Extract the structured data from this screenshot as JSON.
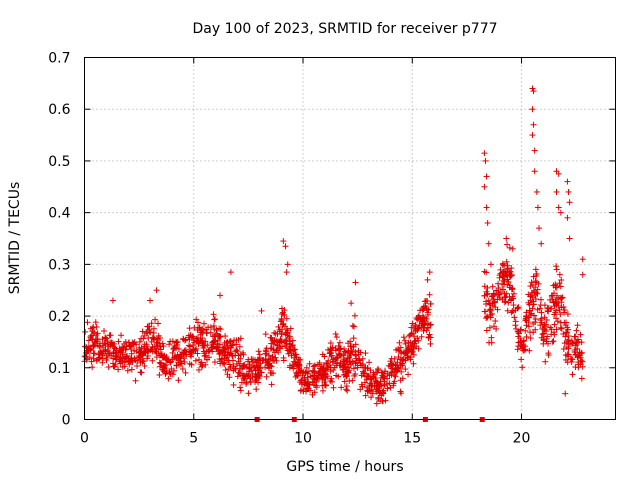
{
  "chart_data": {
    "type": "scatter",
    "title": "Day 100 of 2023, SRMTID for receiver p777",
    "xlabel": "GPS time / hours",
    "ylabel": "SRMTID / TECUs",
    "xlim": [
      0,
      24.3
    ],
    "ylim": [
      0,
      0.7
    ],
    "x_ticks": [
      0,
      5,
      10,
      15,
      20
    ],
    "x_tick_labels": [
      "0",
      "5",
      "10",
      "15",
      "20"
    ],
    "y_ticks": [
      0,
      0.1,
      0.2,
      0.3,
      0.4,
      0.5,
      0.6,
      0.7
    ],
    "y_tick_labels": [
      "0",
      "0.1",
      "0.2",
      "0.3",
      "0.4",
      "0.5",
      "0.6",
      "0.7"
    ],
    "grid": true,
    "marker_symbol": "+",
    "series_color": "#e00000",
    "bottom_markers_x": [
      7.9,
      9.6,
      15.6,
      18.2
    ],
    "profile": {
      "x": [
        0,
        0.5,
        1,
        1.5,
        2,
        2.5,
        3,
        3.3,
        3.6,
        4,
        4.5,
        5,
        5.3,
        5.7,
        6,
        6.5,
        7,
        7.5,
        8,
        8.5,
        9,
        9.3,
        9.6,
        10,
        10.5,
        11,
        11.5,
        12,
        12.3,
        12.6,
        13,
        13.5,
        14,
        14.5,
        15,
        15.3,
        15.6,
        15.9
      ],
      "y": [
        0.13,
        0.14,
        0.14,
        0.12,
        0.13,
        0.12,
        0.15,
        0.14,
        0.11,
        0.12,
        0.13,
        0.14,
        0.15,
        0.14,
        0.16,
        0.13,
        0.11,
        0.09,
        0.1,
        0.12,
        0.17,
        0.16,
        0.12,
        0.07,
        0.08,
        0.09,
        0.12,
        0.1,
        0.14,
        0.11,
        0.08,
        0.06,
        0.09,
        0.11,
        0.14,
        0.18,
        0.2,
        0.17
      ],
      "spread": [
        0.05,
        0.05,
        0.04,
        0.04,
        0.04,
        0.04,
        0.05,
        0.05,
        0.04,
        0.04,
        0.05,
        0.05,
        0.06,
        0.05,
        0.05,
        0.05,
        0.05,
        0.04,
        0.04,
        0.05,
        0.05,
        0.06,
        0.04,
        0.03,
        0.03,
        0.04,
        0.05,
        0.05,
        0.06,
        0.05,
        0.04,
        0.04,
        0.04,
        0.05,
        0.05,
        0.05,
        0.05,
        0.05
      ]
    },
    "profile2": {
      "x": [
        18.3,
        18.6,
        19,
        19.4,
        19.8,
        20.1,
        20.4,
        20.7,
        21,
        21.3,
        21.6,
        21.9,
        22.2,
        22.5,
        22.8
      ],
      "y": [
        0.24,
        0.2,
        0.26,
        0.28,
        0.18,
        0.14,
        0.22,
        0.24,
        0.16,
        0.18,
        0.24,
        0.2,
        0.12,
        0.14,
        0.12
      ],
      "spread": [
        0.07,
        0.06,
        0.06,
        0.06,
        0.06,
        0.05,
        0.06,
        0.07,
        0.06,
        0.06,
        0.07,
        0.06,
        0.05,
        0.05,
        0.04
      ]
    },
    "spikes": [
      {
        "x": 1.3,
        "y": 0.23
      },
      {
        "x": 3.0,
        "y": 0.23
      },
      {
        "x": 3.3,
        "y": 0.25
      },
      {
        "x": 6.2,
        "y": 0.24
      },
      {
        "x": 6.7,
        "y": 0.285
      },
      {
        "x": 8.1,
        "y": 0.21
      },
      {
        "x": 9.1,
        "y": 0.345
      },
      {
        "x": 9.2,
        "y": 0.335
      },
      {
        "x": 9.25,
        "y": 0.285
      },
      {
        "x": 9.3,
        "y": 0.3
      },
      {
        "x": 12.4,
        "y": 0.265
      },
      {
        "x": 12.2,
        "y": 0.225
      },
      {
        "x": 15.8,
        "y": 0.285
      },
      {
        "x": 15.7,
        "y": 0.27
      },
      {
        "x": 18.3,
        "y": 0.515
      },
      {
        "x": 18.35,
        "y": 0.5
      },
      {
        "x": 18.4,
        "y": 0.47
      },
      {
        "x": 18.3,
        "y": 0.45
      },
      {
        "x": 18.4,
        "y": 0.41
      },
      {
        "x": 18.45,
        "y": 0.38
      },
      {
        "x": 18.5,
        "y": 0.34
      },
      {
        "x": 18.6,
        "y": 0.3
      },
      {
        "x": 20.5,
        "y": 0.64
      },
      {
        "x": 20.55,
        "y": 0.635
      },
      {
        "x": 20.5,
        "y": 0.6
      },
      {
        "x": 20.55,
        "y": 0.57
      },
      {
        "x": 20.5,
        "y": 0.55
      },
      {
        "x": 20.6,
        "y": 0.52
      },
      {
        "x": 20.6,
        "y": 0.48
      },
      {
        "x": 20.7,
        "y": 0.44
      },
      {
        "x": 20.75,
        "y": 0.41
      },
      {
        "x": 20.8,
        "y": 0.37
      },
      {
        "x": 20.9,
        "y": 0.34
      },
      {
        "x": 21.6,
        "y": 0.48
      },
      {
        "x": 21.7,
        "y": 0.475
      },
      {
        "x": 21.6,
        "y": 0.44
      },
      {
        "x": 21.7,
        "y": 0.41
      },
      {
        "x": 21.8,
        "y": 0.4
      },
      {
        "x": 22.1,
        "y": 0.46
      },
      {
        "x": 22.15,
        "y": 0.44
      },
      {
        "x": 22.2,
        "y": 0.42
      },
      {
        "x": 22.1,
        "y": 0.39
      },
      {
        "x": 22.2,
        "y": 0.35
      },
      {
        "x": 22.8,
        "y": 0.31
      },
      {
        "x": 22.8,
        "y": 0.28
      },
      {
        "x": 19.3,
        "y": 0.35
      },
      {
        "x": 19.6,
        "y": 0.33
      },
      {
        "x": 22.0,
        "y": 0.05
      }
    ],
    "n_points": 1700,
    "seed": 777
  }
}
